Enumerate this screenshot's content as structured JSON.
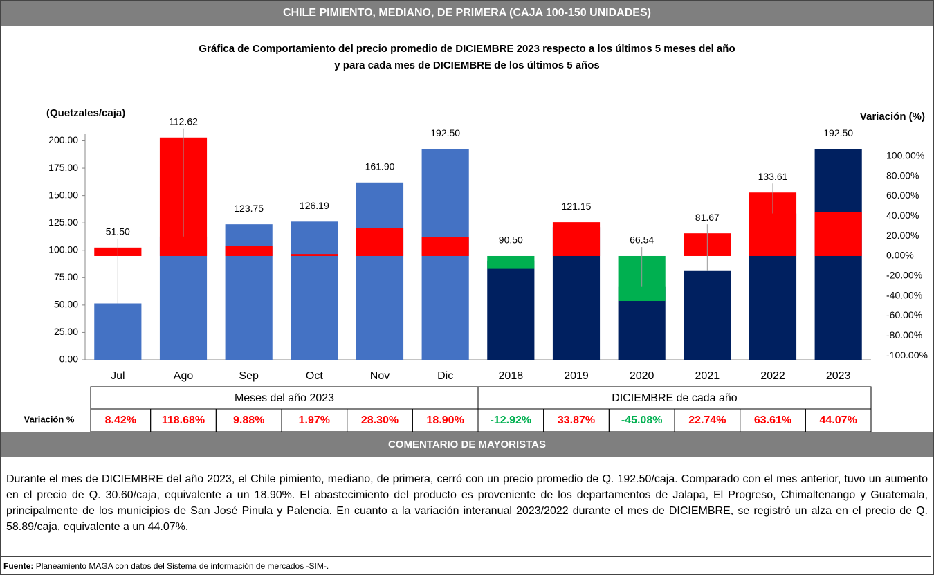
{
  "header": {
    "title": "CHILE PIMIENTO, MEDIANO, DE PRIMERA (CAJA 100-150 UNIDADES)"
  },
  "chart_data": {
    "type": "bar",
    "title": "Gráfica de Comportamiento del precio promedio de DICIEMBRE 2023 respecto a los últimos 5 meses del año",
    "subtitle": "y para cada mes de DICIEMBRE de los últimos 5 años",
    "y_label": "(Quetzales/caja)",
    "y2_label": "Variación (%)",
    "categories": [
      "Jul",
      "Ago",
      "Sep",
      "Oct",
      "Nov",
      "Dic",
      "2018",
      "2019",
      "2020",
      "2021",
      "2022",
      "2023"
    ],
    "series": [
      {
        "colors": [
          "#4472c4",
          "#4472c4",
          "#4472c4",
          "#4472c4",
          "#4472c4",
          "#4472c4",
          "#002060",
          "#002060",
          "#002060",
          "#002060",
          "#002060",
          "#002060"
        ],
        "values": [
          51.5,
          112.62,
          123.75,
          126.19,
          161.9,
          192.5,
          90.5,
          121.15,
          66.54,
          81.67,
          133.61,
          192.5
        ],
        "value_labels": [
          "51.50",
          "112.62",
          "123.75",
          "126.19",
          "161.90",
          "192.50",
          "90.50",
          "121.15",
          "66.54",
          "81.67",
          "133.61",
          "192.50"
        ]
      },
      {
        "axis": "y2",
        "colors": [
          "#ff0000",
          "#ff0000",
          "#ff0000",
          "#ff0000",
          "#ff0000",
          "#ff0000",
          "#00b050",
          "#ff0000",
          "#00b050",
          "#ff0000",
          "#ff0000",
          "#ff0000"
        ],
        "values": [
          8.42,
          118.68,
          9.88,
          1.97,
          28.3,
          18.9,
          -12.92,
          33.87,
          -45.08,
          22.74,
          63.61,
          44.07
        ],
        "value_labels": [
          "8.42%",
          "118.68%",
          "9.88%",
          "1.97%",
          "28.30%",
          "18.90%",
          "-12.92%",
          "33.87%",
          "-45.08%",
          "22.74%",
          "63.61%",
          "44.07%"
        ]
      }
    ],
    "ylim": [
      0,
      206
    ],
    "yticks": [
      {
        "value": 0,
        "label": "0.00"
      },
      {
        "value": 25,
        "label": "25.00"
      },
      {
        "value": 50,
        "label": "50.00"
      },
      {
        "value": 75,
        "label": "75.00"
      },
      {
        "value": 100,
        "label": "100.00"
      },
      {
        "value": 125,
        "label": "125.00"
      },
      {
        "value": 150,
        "label": "150.00"
      },
      {
        "value": 175,
        "label": "175.00"
      },
      {
        "value": 200,
        "label": "200.00"
      }
    ],
    "y2lim": [
      -104,
      122
    ],
    "y2ticks": [
      {
        "value": -100,
        "label": "-100.00%"
      },
      {
        "value": -80,
        "label": "-80.00%"
      },
      {
        "value": -60,
        "label": "-60.00%"
      },
      {
        "value": -40,
        "label": "-40.00%"
      },
      {
        "value": -20,
        "label": "-20.00%"
      },
      {
        "value": 0,
        "label": "0.00%"
      },
      {
        "value": 20,
        "label": "20.00%"
      },
      {
        "value": 40,
        "label": "40.00%"
      },
      {
        "value": 60,
        "label": "60.00%"
      },
      {
        "value": 80,
        "label": "80.00%"
      },
      {
        "value": 100,
        "label": "100.00%"
      }
    ],
    "table_label": "Variación %",
    "groups": [
      "Meses del año 2023",
      "DICIEMBRE de cada año"
    ]
  },
  "comment": {
    "title": "COMENTARIO DE MAYORISTAS",
    "text": "Durante el mes de DICIEMBRE del año 2023, el Chile pimiento, mediano, de primera, cerró con un precio promedio de Q. 192.50/caja. Comparado con el mes anterior, tuvo un aumento en el precio de Q. 30.60/caja, equivalente a un 18.90%. El abastecimiento del producto es proveniente de los departamentos de Jalapa, El Progreso, Chimaltenango y Guatemala, principalmente de los municipios de San José Pinula y Palencia. En cuanto a la variación interanual 2023/2022 durante el mes de DICIEMBRE, se registró un alza en el precio de Q. 58.89/caja, equivalente a un 44.07%."
  },
  "footer": {
    "label": "Fuente:",
    "text": "Planeamiento MAGA con datos del Sistema de información de mercados -SIM-."
  }
}
